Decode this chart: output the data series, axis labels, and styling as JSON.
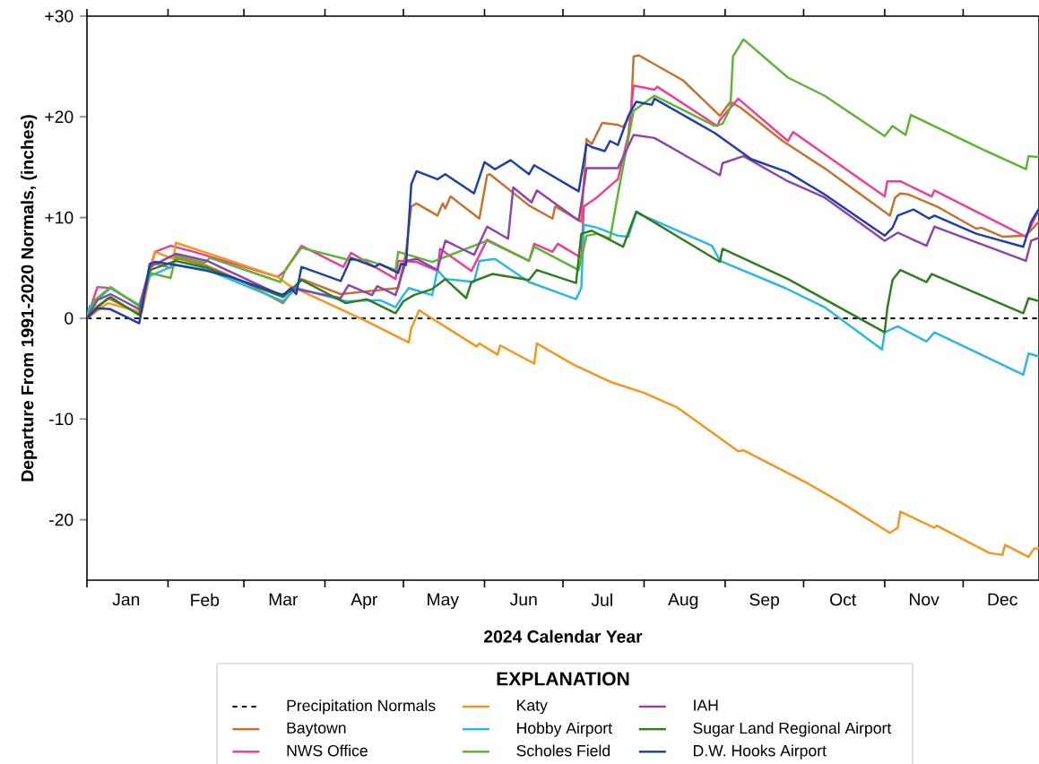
{
  "chart_data": {
    "type": "line",
    "xlabel": "2024 Calendar Year",
    "ylabel": "Departure From 1991-2020 Normals, (inches)",
    "legend_title": "EXPLANATION",
    "legend": "bottom",
    "marker": "none",
    "grid": false,
    "xlim": [
      "2024-01-01",
      "2024-12-30"
    ],
    "ylim": [
      -26,
      30
    ],
    "xticks": [
      {
        "value": "2024-01-01",
        "label": null
      },
      {
        "value": "2024-02-01",
        "label": null
      },
      {
        "value": "2024-03-01",
        "label": null
      },
      {
        "value": "2024-04-01",
        "label": null
      },
      {
        "value": "2024-05-01",
        "label": null
      },
      {
        "value": "2024-06-01",
        "label": null
      },
      {
        "value": "2024-07-01",
        "label": null
      },
      {
        "value": "2024-08-01",
        "label": null
      },
      {
        "value": "2024-09-01",
        "label": null
      },
      {
        "value": "2024-10-01",
        "label": null
      },
      {
        "value": "2024-11-01",
        "label": null
      },
      {
        "value": "2024-12-01",
        "label": null
      },
      {
        "value": "2024-01-16",
        "label": "Jan"
      },
      {
        "value": "2024-02-15",
        "label": "Feb"
      },
      {
        "value": "2024-03-16",
        "label": "Mar"
      },
      {
        "value": "2024-04-16",
        "label": "Apr"
      },
      {
        "value": "2024-05-16",
        "label": "May"
      },
      {
        "value": "2024-06-16",
        "label": "Jun"
      },
      {
        "value": "2024-07-16",
        "label": "Jul"
      },
      {
        "value": "2024-08-16",
        "label": "Aug"
      },
      {
        "value": "2024-09-16",
        "label": "Sep"
      },
      {
        "value": "2024-10-16",
        "label": "Oct"
      },
      {
        "value": "2024-11-16",
        "label": "Nov"
      },
      {
        "value": "2024-12-16",
        "label": "Dec"
      }
    ],
    "yticks": [
      -20,
      -10,
      0,
      {
        "value": 10,
        "label": "+10"
      },
      {
        "value": 20,
        "label": "+20"
      },
      {
        "value": 30,
        "label": "+30"
      }
    ],
    "ref_lines": [
      {
        "axis": "y",
        "value": 0,
        "label": "Precipitation Normals",
        "color": "#000000",
        "line_style": "dashed"
      }
    ],
    "series": [
      {
        "name": "Baytown",
        "color": "#c8702d",
        "x": [
          "2024-01-01",
          "2024-01-09",
          "2024-01-21",
          "2024-01-26",
          "2024-02-02",
          "2024-02-04",
          "2024-02-16",
          "2024-03-01",
          "2024-03-16",
          "2024-03-23",
          "2024-04-07",
          "2024-04-29",
          "2024-05-02",
          "2024-05-04",
          "2024-05-06",
          "2024-05-14",
          "2024-05-16",
          "2024-05-17",
          "2024-05-19",
          "2024-05-30",
          "2024-06-02",
          "2024-06-03",
          "2024-06-18",
          "2024-06-27",
          "2024-06-28",
          "2024-07-08",
          "2024-07-10",
          "2024-07-12",
          "2024-07-16",
          "2024-07-22",
          "2024-07-24",
          "2024-07-27",
          "2024-07-28",
          "2024-07-30",
          "2024-08-14",
          "2024-08-16",
          "2024-08-30",
          "2024-09-03",
          "2024-09-07",
          "2024-09-23",
          "2024-10-09",
          "2024-11-03",
          "2024-11-05",
          "2024-11-07",
          "2024-11-10",
          "2024-11-21",
          "2024-12-06",
          "2024-12-08",
          "2024-12-16",
          "2024-12-25",
          "2024-12-30"
        ],
        "values": [
          0,
          2.0,
          0.5,
          5.5,
          5.0,
          6.0,
          5.2,
          3.6,
          1.5,
          3.9,
          2.4,
          3.0,
          6.6,
          11.1,
          11.4,
          10.2,
          11.4,
          10.9,
          12.1,
          9.9,
          14.2,
          14.3,
          11.2,
          9.9,
          11.1,
          9.6,
          17.8,
          17.3,
          19.4,
          19.2,
          19.0,
          20.3,
          26.0,
          26.1,
          23.9,
          23.6,
          20.1,
          21.5,
          20.9,
          17.6,
          14.9,
          10.2,
          12.0,
          12.4,
          12.3,
          11.1,
          8.9,
          9.0,
          8.1,
          8.2,
          9.6
        ]
      },
      {
        "name": "NWS Office",
        "color": "#ee3d96",
        "x": [
          "2024-01-01",
          "2024-01-05",
          "2024-01-10",
          "2024-01-21",
          "2024-01-27",
          "2024-02-02",
          "2024-02-11",
          "2024-03-14",
          "2024-03-17",
          "2024-03-23",
          "2024-04-08",
          "2024-04-11",
          "2024-04-28",
          "2024-04-29",
          "2024-05-06",
          "2024-05-14",
          "2024-05-15",
          "2024-05-27",
          "2024-06-02",
          "2024-06-18",
          "2024-06-20",
          "2024-06-27",
          "2024-06-29",
          "2024-07-08",
          "2024-07-09",
          "2024-07-14",
          "2024-07-21",
          "2024-07-22",
          "2024-07-26",
          "2024-07-28",
          "2024-08-05",
          "2024-08-06",
          "2024-08-29",
          "2024-08-30",
          "2024-09-06",
          "2024-09-25",
          "2024-09-27",
          "2024-11-01",
          "2024-11-02",
          "2024-11-07",
          "2024-11-19",
          "2024-11-20",
          "2024-12-25",
          "2024-12-30"
        ],
        "values": [
          0,
          3.1,
          3.0,
          1.3,
          6.6,
          7.2,
          6.6,
          4.1,
          4.8,
          7.2,
          5.1,
          6.5,
          3.9,
          5.7,
          5.6,
          4.7,
          6.9,
          4.7,
          7.8,
          5.7,
          7.4,
          6.6,
          7.4,
          6.0,
          11.1,
          12.0,
          13.6,
          13.8,
          18.2,
          23.1,
          22.7,
          23.0,
          19.1,
          19.7,
          21.8,
          17.6,
          18.5,
          12.1,
          13.6,
          13.6,
          12.1,
          12.7,
          8.1,
          10.8
        ]
      },
      {
        "name": "Katy",
        "color": "#f7941d",
        "x": [
          "2024-01-01",
          "2024-01-09",
          "2024-01-22",
          "2024-01-27",
          "2024-02-03",
          "2024-02-04",
          "2024-02-17",
          "2024-03-14",
          "2024-03-18",
          "2024-04-17",
          "2024-05-03",
          "2024-05-04",
          "2024-05-07",
          "2024-05-29",
          "2024-05-30",
          "2024-06-06",
          "2024-06-07",
          "2024-06-20",
          "2024-06-21",
          "2024-07-05",
          "2024-07-19",
          "2024-08-01",
          "2024-08-14",
          "2024-09-06",
          "2024-09-08",
          "2024-10-02",
          "2024-10-16",
          "2024-11-03",
          "2024-11-06",
          "2024-11-07",
          "2024-11-20",
          "2024-11-21",
          "2024-12-11",
          "2024-12-16",
          "2024-12-17",
          "2024-12-26",
          "2024-12-28",
          "2024-12-30"
        ],
        "values": [
          0,
          1.5,
          0.6,
          6.6,
          5.9,
          7.5,
          6.4,
          4.1,
          3.3,
          -0.3,
          -2.4,
          -1.0,
          0.8,
          -2.8,
          -2.5,
          -3.6,
          -2.7,
          -4.5,
          -2.5,
          -4.6,
          -6.3,
          -7.4,
          -8.9,
          -13.2,
          -13.1,
          -16.3,
          -18.4,
          -21.3,
          -20.8,
          -19.2,
          -20.8,
          -20.6,
          -23.3,
          -23.5,
          -22.5,
          -23.7,
          -22.9,
          -22.8
        ]
      },
      {
        "name": "Hobby Airport",
        "color": "#29b6e8",
        "x": [
          "2024-01-01",
          "2024-01-02",
          "2024-01-10",
          "2024-01-21",
          "2024-01-25",
          "2024-02-04",
          "2024-02-16",
          "2024-03-16",
          "2024-03-21",
          "2024-04-09",
          "2024-04-22",
          "2024-04-28",
          "2024-05-01",
          "2024-05-03",
          "2024-05-12",
          "2024-05-14",
          "2024-05-17",
          "2024-05-28",
          "2024-05-30",
          "2024-06-05",
          "2024-06-18",
          "2024-07-06",
          "2024-07-08",
          "2024-07-09",
          "2024-07-14",
          "2024-07-22",
          "2024-07-26",
          "2024-07-29",
          "2024-08-27",
          "2024-08-30",
          "2024-09-24",
          "2024-10-09",
          "2024-10-31",
          "2024-11-01",
          "2024-11-06",
          "2024-11-17",
          "2024-11-20",
          "2024-12-24",
          "2024-12-26",
          "2024-12-30"
        ],
        "values": [
          0,
          1.2,
          3.0,
          1.3,
          4.2,
          5.3,
          4.8,
          1.7,
          3.0,
          1.7,
          1.8,
          1.1,
          2.3,
          3.0,
          2.3,
          4.8,
          3.9,
          3.6,
          5.7,
          5.9,
          3.6,
          1.9,
          3.0,
          9.3,
          9.0,
          8.2,
          8.1,
          10.5,
          7.2,
          5.7,
          3.0,
          1.1,
          -3.1,
          -1.4,
          -0.8,
          -2.3,
          -1.4,
          -5.6,
          -3.5,
          -3.8
        ]
      },
      {
        "name": "Scholes Field",
        "color": "#5cb531",
        "x": [
          "2024-01-01",
          "2024-01-04",
          "2024-01-10",
          "2024-01-21",
          "2024-01-25",
          "2024-02-02",
          "2024-02-04",
          "2024-02-15",
          "2024-02-17",
          "2024-03-15",
          "2024-03-17",
          "2024-03-23",
          "2024-04-10",
          "2024-04-17",
          "2024-04-28",
          "2024-04-29",
          "2024-05-12",
          "2024-06-02",
          "2024-06-18",
          "2024-06-20",
          "2024-07-07",
          "2024-07-10",
          "2024-07-14",
          "2024-07-19",
          "2024-07-22",
          "2024-07-28",
          "2024-08-05",
          "2024-08-28",
          "2024-08-31",
          "2024-09-03",
          "2024-09-04",
          "2024-09-08",
          "2024-09-25",
          "2024-10-09",
          "2024-11-01",
          "2024-11-04",
          "2024-11-09",
          "2024-11-11",
          "2024-12-09",
          "2024-12-25",
          "2024-12-26",
          "2024-12-30"
        ],
        "values": [
          0,
          1.8,
          3.1,
          1.2,
          4.5,
          4.0,
          6.2,
          5.5,
          6.0,
          3.6,
          4.9,
          7.0,
          5.8,
          5.8,
          4.8,
          6.6,
          5.6,
          7.7,
          5.7,
          7.1,
          4.8,
          8.2,
          8.4,
          7.9,
          12.3,
          20.6,
          22.1,
          19.1,
          19.3,
          20.9,
          26.0,
          27.7,
          23.9,
          22.1,
          18.1,
          19.1,
          18.2,
          20.2,
          16.7,
          14.8,
          16.1,
          16.0
        ]
      },
      {
        "name": "IAH",
        "color": "#8e44ad",
        "x": [
          "2024-01-01",
          "2024-01-05",
          "2024-01-10",
          "2024-01-21",
          "2024-01-25",
          "2024-02-04",
          "2024-02-16",
          "2024-03-15",
          "2024-03-21",
          "2024-04-07",
          "2024-04-10",
          "2024-04-19",
          "2024-04-21",
          "2024-04-28",
          "2024-05-02",
          "2024-05-06",
          "2024-05-14",
          "2024-05-17",
          "2024-05-28",
          "2024-06-02",
          "2024-06-10",
          "2024-06-12",
          "2024-06-19",
          "2024-06-21",
          "2024-07-07",
          "2024-07-10",
          "2024-07-22",
          "2024-07-28",
          "2024-08-05",
          "2024-08-30",
          "2024-08-31",
          "2024-09-08",
          "2024-09-25",
          "2024-10-09",
          "2024-11-01",
          "2024-11-06",
          "2024-11-17",
          "2024-11-20",
          "2024-12-25",
          "2024-12-27",
          "2024-12-30"
        ],
        "values": [
          0,
          1.8,
          2.4,
          0.9,
          5.1,
          6.4,
          5.7,
          2.3,
          2.9,
          2.0,
          3.3,
          2.3,
          3.2,
          2.3,
          5.7,
          5.9,
          4.8,
          7.7,
          6.3,
          9.1,
          7.9,
          13.0,
          11.5,
          12.7,
          9.7,
          14.9,
          14.9,
          18.2,
          17.9,
          14.2,
          15.4,
          16.1,
          13.6,
          12.0,
          7.7,
          8.5,
          7.2,
          9.1,
          5.7,
          7.7,
          8.0
        ]
      },
      {
        "name": "Sugar Land Regional Airport",
        "color": "#2e7d1e",
        "x": [
          "2024-01-01",
          "2024-01-05",
          "2024-01-10",
          "2024-01-21",
          "2024-01-25",
          "2024-02-04",
          "2024-02-16",
          "2024-03-16",
          "2024-03-23",
          "2024-04-09",
          "2024-04-17",
          "2024-04-28",
          "2024-05-01",
          "2024-05-05",
          "2024-05-12",
          "2024-05-17",
          "2024-05-25",
          "2024-05-27",
          "2024-06-04",
          "2024-06-18",
          "2024-06-21",
          "2024-07-06",
          "2024-07-08",
          "2024-07-12",
          "2024-07-24",
          "2024-07-29",
          "2024-08-30",
          "2024-08-31",
          "2024-09-05",
          "2024-09-25",
          "2024-10-09",
          "2024-11-01",
          "2024-11-02",
          "2024-11-04",
          "2024-11-07",
          "2024-11-17",
          "2024-11-19",
          "2024-12-24",
          "2024-12-26",
          "2024-12-30"
        ],
        "values": [
          0,
          1.2,
          2.1,
          0.3,
          4.8,
          5.7,
          5.0,
          2.1,
          3.8,
          1.5,
          1.9,
          0.5,
          1.7,
          2.3,
          2.9,
          3.9,
          2.0,
          3.6,
          4.4,
          3.8,
          4.8,
          3.5,
          8.4,
          8.7,
          7.1,
          10.6,
          5.6,
          6.9,
          6.3,
          3.9,
          1.9,
          -1.4,
          1.0,
          3.8,
          4.8,
          3.6,
          4.4,
          0.5,
          2.0,
          1.7
        ]
      },
      {
        "name": "D.W. Hooks Airport",
        "color": "#1f3fa8",
        "x": [
          "2024-01-01",
          "2024-01-05",
          "2024-01-10",
          "2024-01-21",
          "2024-01-25",
          "2024-01-27",
          "2024-02-04",
          "2024-02-16",
          "2024-02-25",
          "2024-03-16",
          "2024-03-19",
          "2024-03-21",
          "2024-03-23",
          "2024-04-07",
          "2024-04-11",
          "2024-04-20",
          "2024-04-22",
          "2024-04-29",
          "2024-04-30",
          "2024-05-02",
          "2024-05-04",
          "2024-05-06",
          "2024-05-14",
          "2024-05-17",
          "2024-05-28",
          "2024-06-01",
          "2024-06-05",
          "2024-06-11",
          "2024-06-18",
          "2024-06-20",
          "2024-07-07",
          "2024-07-10",
          "2024-07-12",
          "2024-07-17",
          "2024-07-19",
          "2024-07-22",
          "2024-07-26",
          "2024-07-29",
          "2024-08-04",
          "2024-08-05",
          "2024-08-28",
          "2024-09-11",
          "2024-09-25",
          "2024-10-09",
          "2024-11-01",
          "2024-11-04",
          "2024-11-06",
          "2024-11-12",
          "2024-11-18",
          "2024-11-20",
          "2024-12-06",
          "2024-12-24",
          "2024-12-27",
          "2024-12-30"
        ],
        "values": [
          0,
          1.0,
          0.9,
          -0.5,
          5.4,
          5.6,
          5.3,
          4.7,
          4.1,
          2.3,
          3.0,
          2.4,
          5.1,
          3.7,
          6.0,
          5.1,
          5.4,
          4.5,
          5.4,
          5.3,
          13.3,
          14.6,
          13.8,
          14.3,
          12.4,
          15.5,
          14.8,
          15.7,
          14.3,
          15.2,
          12.6,
          17.3,
          17.0,
          16.6,
          17.6,
          17.2,
          20.1,
          21.5,
          21.2,
          21.8,
          18.4,
          15.8,
          14.5,
          12.3,
          8.2,
          9.0,
          10.2,
          10.8,
          9.9,
          10.2,
          8.4,
          7.1,
          9.6,
          10.9
        ]
      }
    ]
  }
}
